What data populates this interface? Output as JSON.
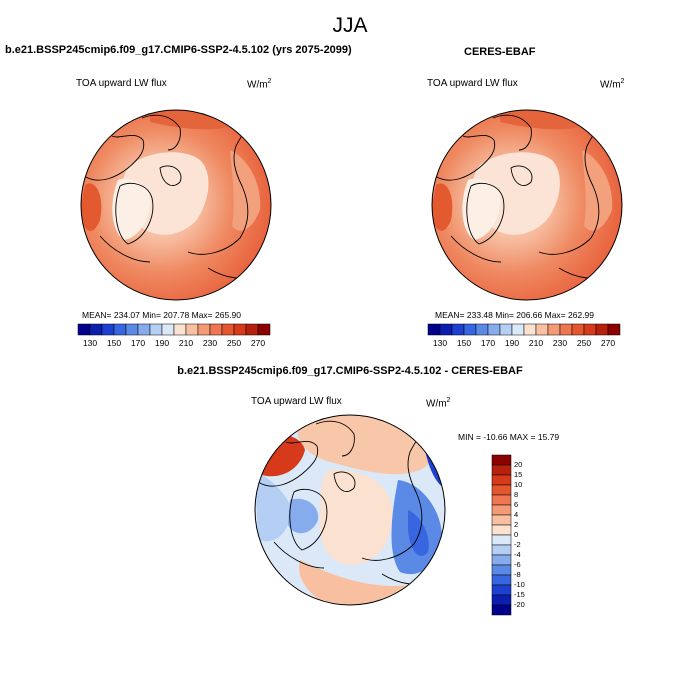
{
  "season": "JJA",
  "panels": [
    {
      "title": "b.e21.BSSP245cmip6.f09_g17.CMIP6-SSP2-4.5.102 (yrs 2075-2099)",
      "variable": "TOA upward LW flux",
      "units_base": "W/m",
      "units_exp": "2",
      "stats": "MEAN= 234.07  Min= 207.78  Max= 265.90"
    },
    {
      "title": "CERES-EBAF",
      "variable": "TOA upward LW flux",
      "units_base": "W/m",
      "units_exp": "2",
      "stats": "MEAN= 233.48  Min= 206.66  Max= 262.99"
    },
    {
      "title": "b.e21.BSSP245cmip6.f09_g17.CMIP6-SSP2-4.5.102 - CERES-EBAF",
      "variable": "TOA upward LW flux",
      "units_base": "W/m",
      "units_exp": "2",
      "stats": "MIN = -10.66 MAX =  15.79"
    }
  ],
  "abs_colorbar": {
    "labels": [
      "130",
      "150",
      "170",
      "190",
      "210",
      "230",
      "250",
      "270"
    ],
    "colors": [
      "#00008b",
      "#0a1fb0",
      "#1e40d0",
      "#3766e0",
      "#5a8ae6",
      "#86acee",
      "#b4cef4",
      "#dbe8f8",
      "#fbe1cf",
      "#f8c0a0",
      "#f49a74",
      "#ee7650",
      "#e5552e",
      "#d63a1a",
      "#b6200c",
      "#8b0000"
    ]
  },
  "diff_colorbar": {
    "labels": [
      "20",
      "15",
      "10",
      "8",
      "6",
      "4",
      "2",
      "0",
      "-2",
      "-4",
      "-6",
      "-8",
      "-10",
      "-15",
      "-20"
    ],
    "colors": [
      "#8b0000",
      "#b6200c",
      "#d63a1a",
      "#e5552e",
      "#ee7650",
      "#f49a74",
      "#f8c0a0",
      "#fbe1cf",
      "#dbe8f8",
      "#b4cef4",
      "#86acee",
      "#5a8ae6",
      "#3766e0",
      "#1e40d0",
      "#0a1fb0",
      "#00008b"
    ]
  }
}
